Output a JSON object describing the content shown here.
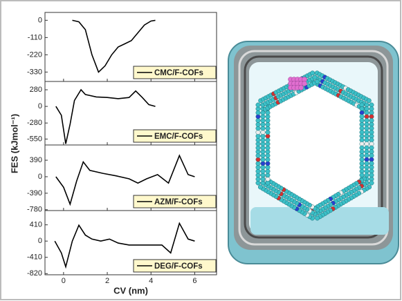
{
  "chart_data": [
    {
      "type": "line",
      "xlim": [
        -0.85,
        7.0
      ],
      "ylim": [
        -390,
        50
      ],
      "yticks": [
        0,
        -110,
        -220,
        -330
      ],
      "series": [
        {
          "name": "CMC/F-COFs",
          "color": "#000000",
          "x": [
            0.4,
            0.7,
            1.0,
            1.3,
            1.6,
            1.9,
            2.2,
            2.5,
            2.8,
            3.1,
            3.4,
            3.7,
            4.0,
            4.2
          ],
          "values": [
            0,
            -10,
            -60,
            -220,
            -330,
            -290,
            -220,
            -170,
            -150,
            -130,
            -80,
            -30,
            -5,
            0
          ]
        }
      ]
    },
    {
      "type": "line",
      "xlim": [
        -0.85,
        7.0
      ],
      "ylim": [
        -650,
        420
      ],
      "yticks": [
        280,
        0,
        -280,
        -550
      ],
      "series": [
        {
          "name": "EMC/F-COFs",
          "color": "#000000",
          "x": [
            -0.35,
            -0.1,
            0.1,
            0.3,
            0.5,
            0.8,
            1.0,
            1.5,
            2.0,
            2.5,
            3.0,
            3.3,
            3.6,
            3.9,
            4.2
          ],
          "values": [
            0,
            -150,
            -630,
            -300,
            100,
            280,
            200,
            160,
            150,
            130,
            150,
            260,
            150,
            30,
            0
          ]
        }
      ]
    },
    {
      "type": "line",
      "xlim": [
        -0.85,
        7.0
      ],
      "ylim": [
        -800,
        750
      ],
      "yticks": [
        390,
        0,
        -390,
        -780
      ],
      "series": [
        {
          "name": "AZM/F-COFs",
          "color": "#000000",
          "x": [
            -0.35,
            0,
            0.3,
            0.6,
            0.9,
            1.2,
            1.8,
            2.4,
            3.0,
            3.4,
            3.8,
            4.3,
            4.8,
            5.3,
            5.7,
            6.0
          ],
          "values": [
            0,
            -250,
            -650,
            -100,
            350,
            150,
            80,
            20,
            -50,
            -150,
            -50,
            50,
            -150,
            500,
            50,
            0
          ]
        }
      ]
    },
    {
      "type": "line",
      "xlim": [
        -0.85,
        7.0
      ],
      "ylim": [
        -850,
        770
      ],
      "yticks": [
        410,
        0,
        -410,
        -820
      ],
      "xticks": [
        0,
        2,
        4,
        6
      ],
      "xlabel": "CV (nm)",
      "series": [
        {
          "name": "DEG/F-COFs",
          "color": "#000000",
          "x": [
            -0.4,
            -0.1,
            0.1,
            0.4,
            0.7,
            1.0,
            1.3,
            1.7,
            2.1,
            2.5,
            3.0,
            3.5,
            4.0,
            4.5,
            4.9,
            5.3,
            5.7,
            6.0
          ],
          "values": [
            0,
            -300,
            -650,
            0,
            400,
            150,
            50,
            0,
            50,
            -50,
            -100,
            -100,
            -100,
            -100,
            -300,
            450,
            50,
            0
          ]
        }
      ]
    }
  ],
  "shared_ylabel": "FES (kJmol⁻¹)"
}
